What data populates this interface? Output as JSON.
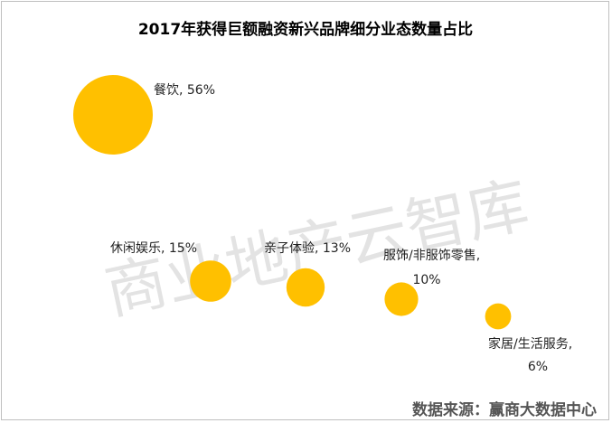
{
  "chart_data": {
    "type": "scatter",
    "title": "2017年获得巨额融资新兴品牌细分业态数量占比",
    "color": "#FFC000",
    "points": [
      {
        "category": "餐饮",
        "value_label": "56%",
        "value": 56
      },
      {
        "category": "休闲娱乐",
        "value_label": "15%",
        "value": 15
      },
      {
        "category": "亲子体验",
        "value_label": "13%",
        "value": 13
      },
      {
        "category": "服饰/非服饰零售",
        "value_label": "10%",
        "value": 10
      },
      {
        "category": "家居/生活服务",
        "value_label": "6%",
        "value": 6
      }
    ],
    "grid": false,
    "legend": "none"
  },
  "watermark": "商业地产云智库",
  "source": "数据来源：赢商大数据中心"
}
